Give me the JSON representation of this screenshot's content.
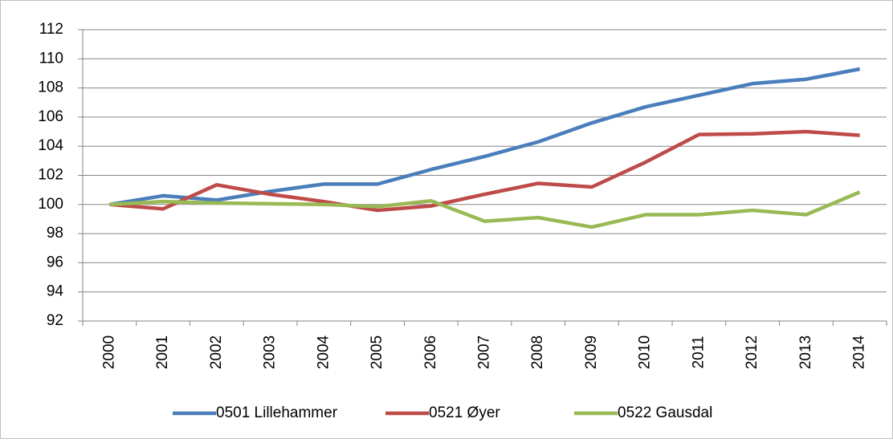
{
  "chart_data": {
    "type": "line",
    "categories": [
      "2000",
      "2001",
      "2002",
      "2003",
      "2004",
      "2005",
      "2006",
      "2007",
      "2008",
      "2009",
      "2010",
      "2011",
      "2012",
      "2013",
      "2014"
    ],
    "series": [
      {
        "name": "0501 Lillehammer",
        "color": "#4a7ebb",
        "values": [
          100,
          100.6,
          100.3,
          100.9,
          101.4,
          101.4,
          102.4,
          103.3,
          104.3,
          105.6,
          106.7,
          107.5,
          108.3,
          108.6,
          109.3
        ]
      },
      {
        "name": "0521 Øyer",
        "color": "#be4b48",
        "values": [
          100,
          99.7,
          101.35,
          100.7,
          100.2,
          99.6,
          99.9,
          100.7,
          101.45,
          101.2,
          102.9,
          104.8,
          104.85,
          105.0,
          104.75
        ]
      },
      {
        "name": "0522 Gausdal",
        "color": "#98b954",
        "values": [
          100,
          100.2,
          100.1,
          100.05,
          100.0,
          99.85,
          100.25,
          98.85,
          99.1,
          98.45,
          99.3,
          99.3,
          99.6,
          99.3,
          100.85
        ]
      }
    ],
    "ylim": [
      92,
      112
    ],
    "yticks": [
      92,
      94,
      96,
      98,
      100,
      102,
      104,
      106,
      108,
      110,
      112
    ],
    "grid": true,
    "legend": "bottom"
  }
}
